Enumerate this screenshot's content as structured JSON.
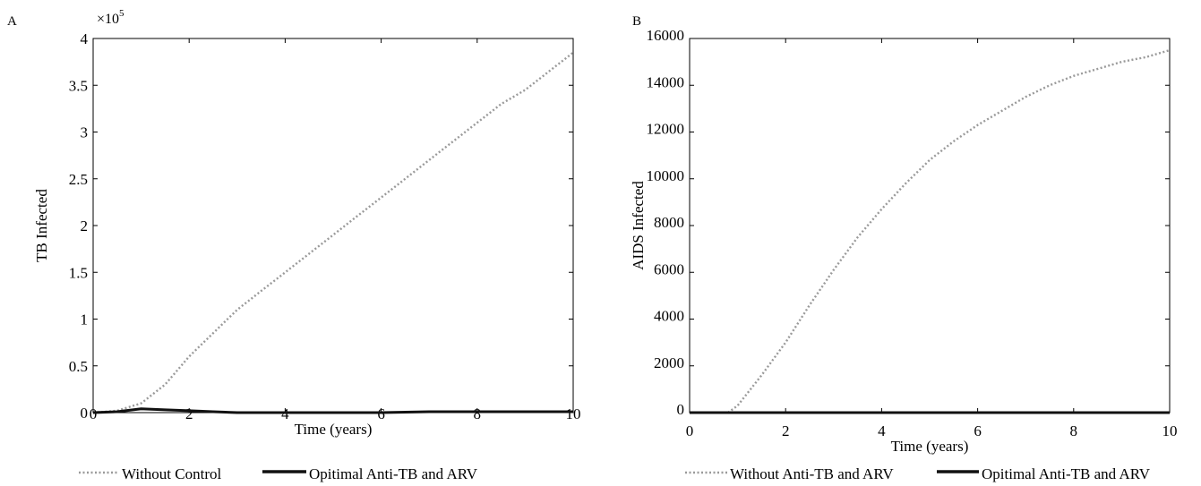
{
  "chart_data": [
    {
      "panel_label": "A",
      "type": "line",
      "xlabel": "Time (years)",
      "ylabel": "TB Infected",
      "y_multiplier_label": "×10",
      "y_multiplier_exp": "5",
      "xlim": [
        0,
        10
      ],
      "ylim": [
        0,
        4
      ],
      "xticks": [
        0,
        2,
        4,
        6,
        8,
        10
      ],
      "yticks": [
        0,
        0.5,
        1,
        1.5,
        2,
        2.5,
        3,
        3.5,
        4
      ],
      "ytick_labels": [
        "0",
        "0.5",
        "1",
        "1.5",
        "2",
        "2.5",
        "3",
        "3.5",
        "4"
      ],
      "grid": false,
      "legend_placement": "bottom",
      "series": [
        {
          "name": "Without Control",
          "style": "dotted",
          "color": "#9a9a9a",
          "x": [
            0,
            0.5,
            1,
            1.5,
            2,
            2.5,
            3,
            3.5,
            4,
            4.5,
            5,
            5.5,
            6,
            6.5,
            7,
            7.5,
            8,
            8.5,
            9,
            9.5,
            10
          ],
          "y": [
            0,
            0.02,
            0.1,
            0.3,
            0.6,
            0.85,
            1.1,
            1.3,
            1.5,
            1.7,
            1.9,
            2.1,
            2.3,
            2.5,
            2.7,
            2.9,
            3.1,
            3.3,
            3.45,
            3.65,
            3.85
          ]
        },
        {
          "name": "Opitimal Anti-TB and ARV",
          "style": "solid",
          "color": "#111111",
          "x": [
            0,
            0.5,
            1,
            1.5,
            2,
            2.5,
            3,
            4,
            5,
            6,
            7,
            8,
            9,
            10
          ],
          "y": [
            0,
            0.01,
            0.04,
            0.03,
            0.02,
            0.01,
            0.0,
            0.0,
            0.0,
            0.0,
            0.01,
            0.01,
            0.01,
            0.01
          ]
        }
      ]
    },
    {
      "panel_label": "B",
      "type": "line",
      "xlabel": "Time (years)",
      "ylabel": "AIDS Infected",
      "xlim": [
        0,
        10
      ],
      "ylim": [
        0,
        16000
      ],
      "xticks": [
        0,
        2,
        4,
        6,
        8,
        10
      ],
      "yticks": [
        0,
        2000,
        4000,
        6000,
        8000,
        10000,
        12000,
        14000,
        16000
      ],
      "ytick_labels": [
        "0",
        "2000",
        "4000",
        "6000",
        "8000",
        "10000",
        "12000",
        "14000",
        "16000"
      ],
      "grid": false,
      "legend_placement": "bottom",
      "series": [
        {
          "name": "Without Anti-TB and ARV",
          "style": "dotted",
          "color": "#9a9a9a",
          "x": [
            0.8,
            1,
            1.5,
            2,
            2.5,
            3,
            3.5,
            4,
            4.5,
            5,
            5.5,
            6,
            6.5,
            7,
            7.5,
            8,
            8.5,
            9,
            9.5,
            10
          ],
          "y": [
            0,
            300,
            1600,
            3000,
            4600,
            6100,
            7500,
            8700,
            9800,
            10800,
            11600,
            12300,
            12900,
            13500,
            14000,
            14400,
            14700,
            15000,
            15200,
            15500
          ]
        },
        {
          "name": "Opitimal Anti-TB and ARV",
          "style": "solid",
          "color": "#111111",
          "x": [
            0,
            1,
            2,
            3,
            4,
            5,
            6,
            7,
            8,
            9,
            10
          ],
          "y": [
            0,
            0,
            0,
            0,
            0,
            0,
            0,
            0,
            0,
            0,
            0
          ]
        }
      ]
    }
  ]
}
